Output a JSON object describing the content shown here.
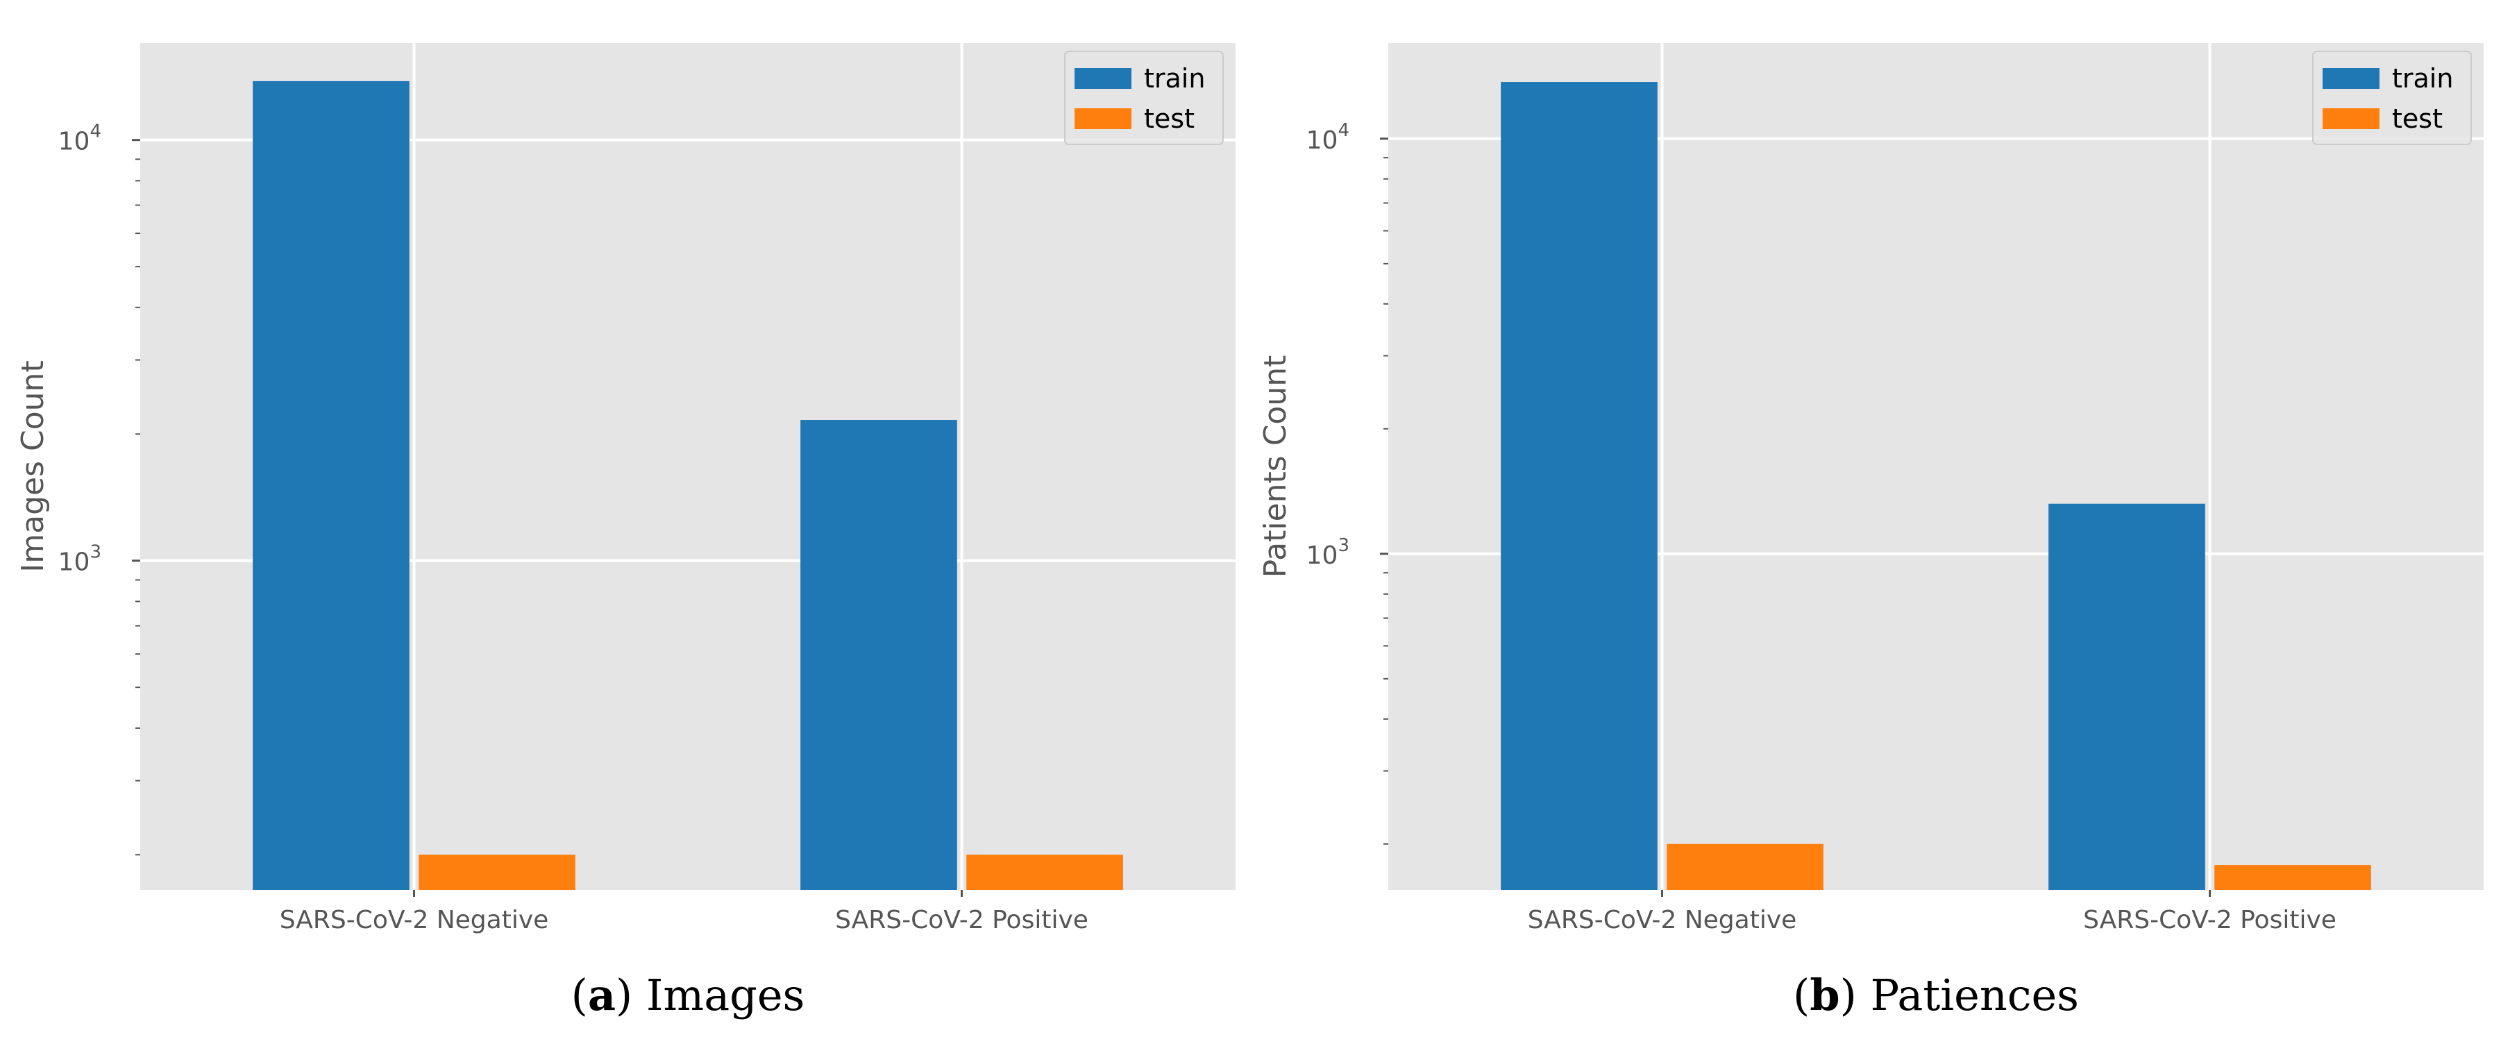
{
  "chart_data": [
    {
      "type": "bar",
      "yscale": "log",
      "categories": [
        "SARS-CoV-2 Negative",
        "SARS-CoV-2 Positive"
      ],
      "series": [
        {
          "name": "train",
          "color": "#1f77b4",
          "values": [
            13800,
            2160
          ]
        },
        {
          "name": "test",
          "color": "#ff7f0e",
          "values": [
            200,
            200
          ]
        }
      ],
      "ylabel": "Images Count",
      "ylim": [
        165,
        17000
      ],
      "major_ticks": [
        {
          "value": 1000,
          "base": "10",
          "exp": "3"
        },
        {
          "value": 10000,
          "base": "10",
          "exp": "4"
        }
      ],
      "minor_ticks": [
        200,
        300,
        400,
        500,
        600,
        700,
        800,
        900,
        2000,
        3000,
        4000,
        5000,
        6000,
        7000,
        8000,
        9000
      ],
      "legend": "top-right",
      "grid": true,
      "caption": {
        "open": "(",
        "letter": "a",
        "close": ")",
        "text": " Images"
      }
    },
    {
      "type": "bar",
      "yscale": "log",
      "categories": [
        "SARS-CoV-2 Negative",
        "SARS-CoV-2 Positive"
      ],
      "series": [
        {
          "name": "train",
          "color": "#1f77b4",
          "values": [
            13700,
            1320
          ]
        },
        {
          "name": "test",
          "color": "#ff7f0e",
          "values": [
            200,
            178
          ]
        }
      ],
      "ylabel": "Patients Count",
      "ylim": [
        155,
        17000
      ],
      "major_ticks": [
        {
          "value": 1000,
          "base": "10",
          "exp": "3"
        },
        {
          "value": 10000,
          "base": "10",
          "exp": "4"
        }
      ],
      "minor_ticks": [
        200,
        300,
        400,
        500,
        600,
        700,
        800,
        900,
        2000,
        3000,
        4000,
        5000,
        6000,
        7000,
        8000,
        9000
      ],
      "legend": "top-right",
      "grid": true,
      "caption": {
        "open": "(",
        "letter": "b",
        "close": ")",
        "text": " Patiences"
      }
    }
  ]
}
